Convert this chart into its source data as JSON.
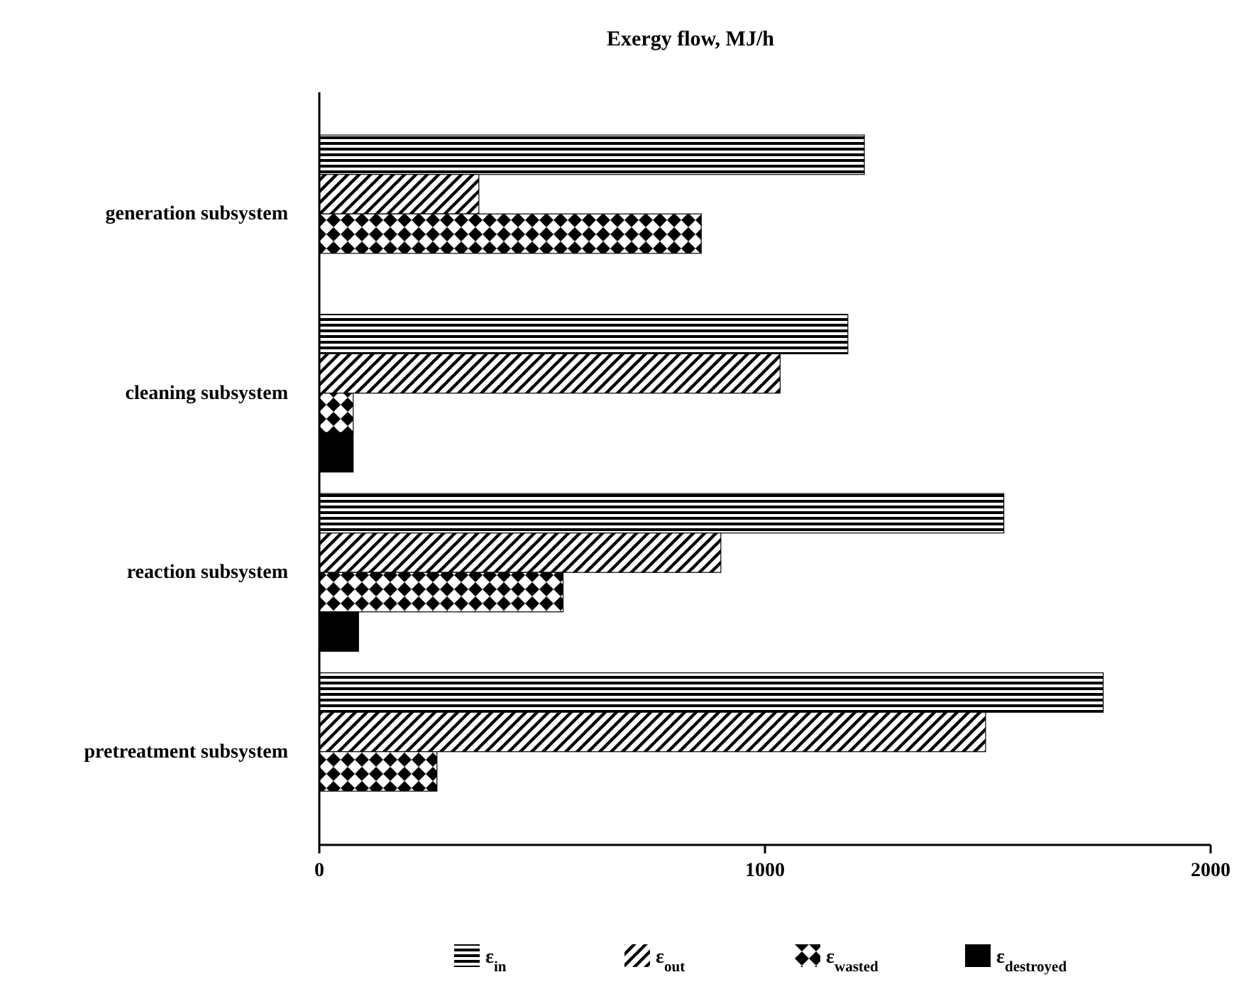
{
  "chart_data": {
    "type": "bar",
    "orientation": "horizontal",
    "title": "Exergy flow, MJ/h",
    "categories": [
      "generation subsystem",
      "cleaning subsystem",
      "reaction subsystem",
      "pretreatment subsystem"
    ],
    "series": [
      {
        "name": "ε$_{in}$",
        "color": "#000000",
        "values": [
          1223,
          1186,
          1536,
          1759
        ]
      },
      {
        "name": "ε$_{out}$",
        "color": "#000000",
        "values": [
          358,
          1034,
          901,
          1495
        ]
      },
      {
        "name": "ε$_{wasted}$",
        "color": "#000000",
        "values": [
          857,
          76,
          547,
          264
        ]
      },
      {
        "name": "ε$_{destroyed}$",
        "color": "#000000",
        "values": [
          null,
          76,
          88,
          null
        ]
      }
    ],
    "xlim": [
      0,
      2000
    ],
    "xticks": [
      0,
      1000,
      2000
    ],
    "grid": false,
    "legend": "bottom"
  }
}
